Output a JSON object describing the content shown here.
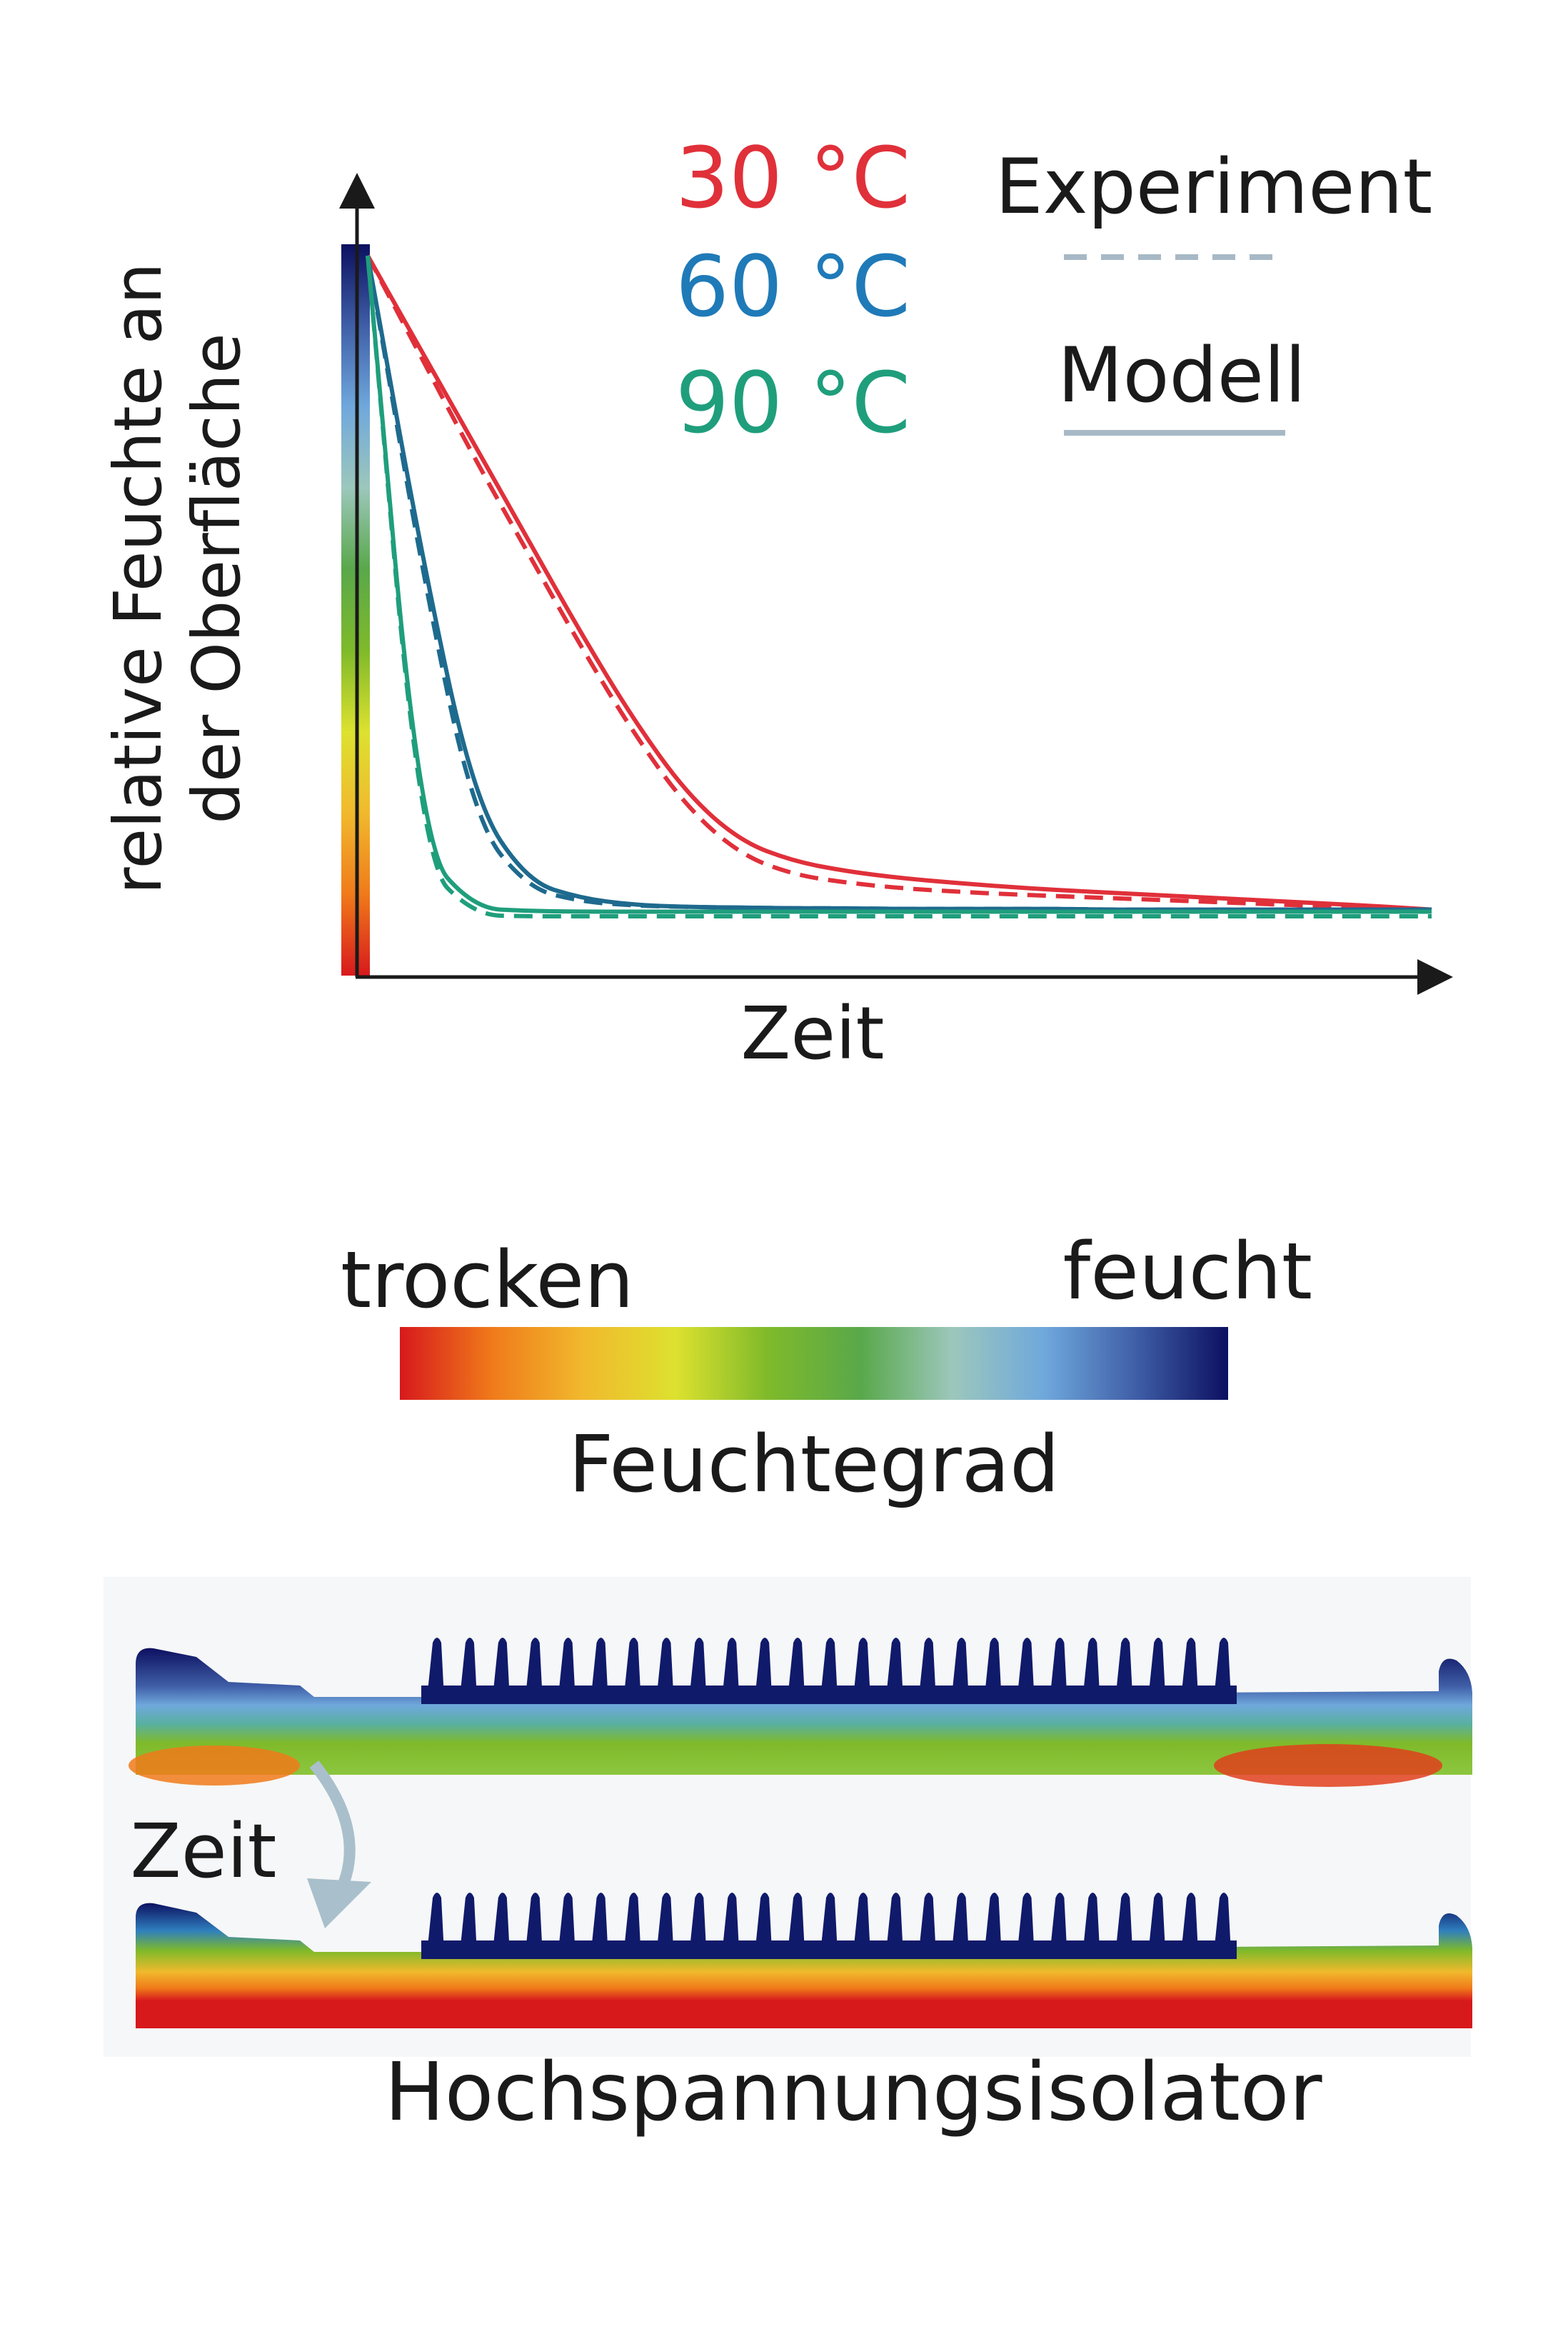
{
  "chart_data": {
    "type": "line",
    "title": "",
    "xlabel": "Zeit",
    "ylabel_line1": "relative Feuchte an",
    "ylabel_line2": "der Oberfläche",
    "ylim": [
      0,
      1
    ],
    "xlim": [
      0,
      1
    ],
    "x": [
      0,
      0.05,
      0.1,
      0.15,
      0.2,
      0.25,
      0.3,
      0.35,
      0.4,
      0.45,
      0.5,
      0.55,
      0.6,
      0.65,
      0.7,
      0.75,
      0.8,
      0.85,
      0.9,
      0.95,
      1
    ],
    "series": [
      {
        "name": "30 °C",
        "kind": "Modell",
        "color": "#e0303a",
        "values": [
          1,
          0.86,
          0.72,
          0.58,
          0.44,
          0.31,
          0.2,
          0.13,
          0.1,
          0.085,
          0.075,
          0.068,
          0.062,
          0.057,
          0.053,
          0.049,
          0.045,
          0.041,
          0.037,
          0.033,
          0.028
        ]
      },
      {
        "name": "30 °C",
        "kind": "Experiment",
        "color": "#e0303a",
        "values": [
          1,
          0.85,
          0.7,
          0.56,
          0.42,
          0.29,
          0.18,
          0.11,
          0.08,
          0.068,
          0.06,
          0.055,
          0.051,
          0.048,
          0.045,
          0.042,
          0.039,
          0.036,
          0.033,
          0.03,
          0.028
        ]
      },
      {
        "name": "60 °C",
        "kind": "Modell",
        "color": "#1e6a8e",
        "values": [
          1,
          0.56,
          0.19,
          0.07,
          0.045,
          0.035,
          0.032,
          0.031,
          0.03,
          0.03,
          0.029,
          0.029,
          0.029,
          0.029,
          0.028,
          0.028,
          0.028,
          0.028,
          0.028,
          0.028,
          0.028
        ]
      },
      {
        "name": "60 °C",
        "kind": "Experiment",
        "color": "#1e6a8e",
        "values": [
          1,
          0.54,
          0.16,
          0.06,
          0.04,
          0.034,
          0.032,
          0.031,
          0.03,
          0.03,
          0.029,
          0.029,
          0.029,
          0.029,
          0.028,
          0.028,
          0.028,
          0.028,
          0.028,
          0.028,
          0.028
        ]
      },
      {
        "name": "90 °C",
        "kind": "Modell",
        "color": "#1f9e7c",
        "values": [
          1,
          0.12,
          0.03,
          0.026,
          0.025,
          0.025,
          0.025,
          0.025,
          0.025,
          0.025,
          0.025,
          0.025,
          0.025,
          0.025,
          0.025,
          0.025,
          0.025,
          0.025,
          0.025,
          0.025,
          0.025
        ]
      },
      {
        "name": "90 °C",
        "kind": "Experiment",
        "color": "#1f9e7c",
        "values": [
          1,
          0.1,
          0.02,
          0.018,
          0.018,
          0.018,
          0.018,
          0.018,
          0.018,
          0.018,
          0.018,
          0.018,
          0.018,
          0.018,
          0.018,
          0.018,
          0.018,
          0.018,
          0.018,
          0.018,
          0.018
        ]
      }
    ],
    "grid": false,
    "legend_placement": "top-right"
  },
  "legend": {
    "temperatures": [
      {
        "label": "30 °C",
        "color": "#e0303a"
      },
      {
        "label": "60 °C",
        "color": "#1f7ab8"
      },
      {
        "label": "90 °C",
        "color": "#1f9e7c"
      }
    ],
    "experiment_label": "Experiment",
    "model_label": "Modell",
    "legend_line_color": "#a7b9c6"
  },
  "colorbar": {
    "left_label": "trocken",
    "right_label": "feucht",
    "title": "Feuchtegrad",
    "stops": [
      "#d7191c",
      "#f07a1a",
      "#f1b92d",
      "#dde12f",
      "#7fba2a",
      "#59a84a",
      "#9cc7bc",
      "#6fa8dc",
      "#3f5ea7",
      "#0c1060"
    ]
  },
  "insulator": {
    "time_label": "Zeit",
    "caption": "Hochspannungsisolator",
    "arrow_color": "#a9bfcc"
  }
}
